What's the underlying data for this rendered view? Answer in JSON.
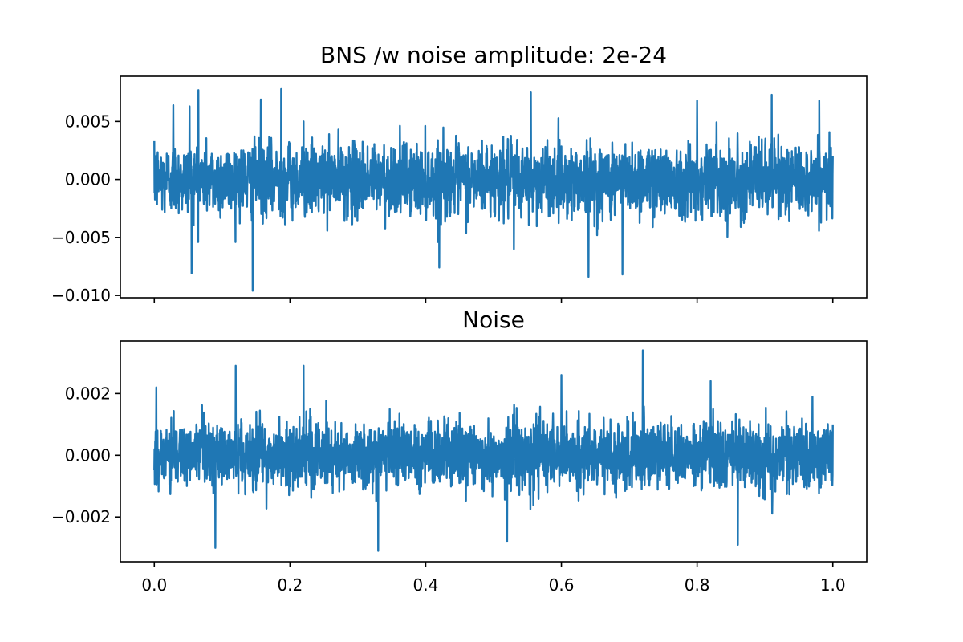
{
  "chart_data": [
    {
      "type": "line",
      "title": "BNS /w noise amplitude: 2e-24",
      "xlabel": "",
      "ylabel": "",
      "xlim": [
        -0.05,
        1.05
      ],
      "ylim": [
        -0.0102,
        0.0089
      ],
      "x_ticks": [
        0.0,
        0.2,
        0.4,
        0.6,
        0.8,
        1.0
      ],
      "x_tick_labels_visible": false,
      "y_ticks": [
        -0.01,
        -0.005,
        0.0,
        0.005
      ],
      "y_tick_labels": [
        "−0.010",
        "−0.005",
        "0.000",
        "0.005"
      ],
      "grid": false,
      "legend": "none",
      "series": [
        {
          "color": "#1f77b4",
          "x_range": [
            0.0,
            1.0
          ],
          "envelope_typical": [
            -0.004,
            0.004
          ],
          "values": [
            {
              "x": 0.0,
              "y": 0.0033
            },
            {
              "x": 0.028,
              "y": 0.0064
            },
            {
              "x": 0.052,
              "y": 0.0063
            },
            {
              "x": 0.055,
              "y": -0.0081
            },
            {
              "x": 0.065,
              "y": 0.0077
            },
            {
              "x": 0.145,
              "y": -0.0096
            },
            {
              "x": 0.157,
              "y": 0.0069
            },
            {
              "x": 0.187,
              "y": 0.0078
            },
            {
              "x": 0.22,
              "y": 0.005
            },
            {
              "x": 0.42,
              "y": -0.0076
            },
            {
              "x": 0.53,
              "y": -0.006
            },
            {
              "x": 0.555,
              "y": 0.0075
            },
            {
              "x": 0.64,
              "y": -0.0084
            },
            {
              "x": 0.69,
              "y": -0.0082
            },
            {
              "x": 0.8,
              "y": 0.0068
            },
            {
              "x": 0.91,
              "y": 0.0073
            },
            {
              "x": 0.98,
              "y": 0.0068
            },
            {
              "x": 1.0,
              "y": 0.002
            }
          ]
        }
      ]
    },
    {
      "type": "line",
      "title": "Noise",
      "xlabel": "",
      "ylabel": "",
      "xlim": [
        -0.05,
        1.05
      ],
      "ylim": [
        -0.00345,
        0.0037
      ],
      "x_ticks": [
        0.0,
        0.2,
        0.4,
        0.6,
        0.8,
        1.0
      ],
      "x_tick_labels": [
        "0.0",
        "0.2",
        "0.4",
        "0.6",
        "0.8",
        "1.0"
      ],
      "y_ticks": [
        -0.002,
        0.0,
        0.002
      ],
      "y_tick_labels": [
        "−0.002",
        "0.000",
        "0.002"
      ],
      "grid": false,
      "legend": "none",
      "series": [
        {
          "color": "#1f77b4",
          "x_range": [
            0.0,
            1.0
          ],
          "envelope_typical": [
            -0.0014,
            0.0014
          ],
          "values": [
            {
              "x": 0.003,
              "y": 0.0022
            },
            {
              "x": 0.09,
              "y": -0.003
            },
            {
              "x": 0.12,
              "y": 0.0029
            },
            {
              "x": 0.22,
              "y": 0.0029
            },
            {
              "x": 0.33,
              "y": -0.0031
            },
            {
              "x": 0.52,
              "y": -0.0028
            },
            {
              "x": 0.6,
              "y": 0.0026
            },
            {
              "x": 0.72,
              "y": 0.0034
            },
            {
              "x": 0.82,
              "y": 0.0024
            },
            {
              "x": 0.86,
              "y": -0.0029
            },
            {
              "x": 0.97,
              "y": 0.0019
            },
            {
              "x": 1.0,
              "y": 0.001
            }
          ]
        }
      ]
    }
  ]
}
